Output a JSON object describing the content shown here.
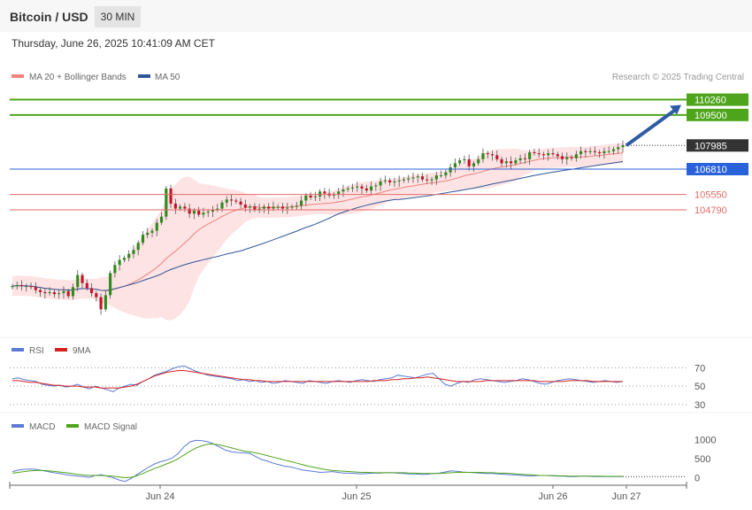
{
  "header": {
    "symbol": "Bitcoin / USD",
    "interval": "30 MIN",
    "datetime": "Thursday, June 26, 2025 10:41:09 AM CET",
    "source": "Research © 2025 Trading Central"
  },
  "colors": {
    "ma20": "#f0837f",
    "ma50": "#2f5597",
    "candle_up": "#2f8a1e",
    "candle_down": "#c7132a",
    "bollinger_fill": "#fde3e3",
    "resistance": "#4ea51b",
    "pivot": "#2962d9",
    "support": "#e26b6b",
    "price_tag": "#333333",
    "rsi": "#5b7bd5",
    "rsi_ma": "#d62020",
    "macd": "#5b7bd5",
    "macd_signal": "#4ea51b",
    "arrow": "#2f5ba5"
  },
  "chart_data": [
    {
      "type": "candlestick",
      "title": "Bitcoin / USD",
      "legend": [
        "MA 20 + Bollinger Bands",
        "MA 50"
      ],
      "x_ticks": [
        "Jun 24",
        "Jun 25",
        "Jun 26",
        "Jun 27"
      ],
      "ylim": [
        98500,
        110900
      ],
      "key_levels": [
        {
          "label": "110260",
          "value": 110260,
          "kind": "resistance"
        },
        {
          "label": "109500",
          "value": 109500,
          "kind": "resistance"
        },
        {
          "label": "107985",
          "value": 107985,
          "kind": "current"
        },
        {
          "label": "106810",
          "value": 106810,
          "kind": "pivot"
        },
        {
          "label": "105550",
          "value": 105550,
          "kind": "support"
        },
        {
          "label": "104790",
          "value": 104790,
          "kind": "support"
        }
      ],
      "closes": [
        101000,
        101050,
        101000,
        101000,
        100950,
        100800,
        100700,
        100650,
        100700,
        100600,
        100650,
        100750,
        100500,
        100950,
        101550,
        101150,
        100900,
        100650,
        100450,
        99850,
        100550,
        101650,
        102050,
        102300,
        102400,
        102600,
        102800,
        103150,
        103550,
        103650,
        103750,
        104150,
        104450,
        105850,
        105100,
        104850,
        104950,
        104850,
        104600,
        104750,
        104550,
        104650,
        104700,
        104800,
        104850,
        105150,
        105300,
        105250,
        105200,
        105050,
        104900,
        104950,
        104800,
        104850,
        104950,
        104850,
        104950,
        104950,
        104850,
        104900,
        104950,
        105000,
        105250,
        105500,
        105400,
        105450,
        105700,
        105600,
        105500,
        105550,
        105700,
        105800,
        105850,
        105900,
        105950,
        105850,
        105750,
        105950,
        106000,
        106200,
        106250,
        106150,
        106200,
        106250,
        106300,
        106350,
        106400,
        106450,
        106300,
        106250,
        106300,
        106500,
        106500,
        106650,
        106900,
        107100,
        107250,
        107300,
        106950,
        107100,
        107300,
        107600,
        107550,
        107500,
        107300,
        107100,
        107200,
        107100,
        107250,
        107350,
        107300,
        107650,
        107600,
        107550,
        107500,
        107600,
        107550,
        107450,
        107300,
        107400,
        107350,
        107550,
        107700,
        107650,
        107700,
        107650,
        107600,
        107700,
        107700,
        107800,
        107900,
        107985
      ],
      "bollinger": {
        "upper_start": 101900,
        "upper_end": 108300,
        "lower_start": 99200,
        "lower_end": 107100
      },
      "ma20": {
        "start": 100700,
        "end": 107700
      },
      "ma50": {
        "start": 100200,
        "end": 107500
      }
    },
    {
      "type": "line",
      "legend": [
        "RSI",
        "9MA"
      ],
      "y_ticks": [
        "70",
        "50",
        "30"
      ],
      "ylim": [
        25,
        80
      ],
      "rsi": [
        58,
        59,
        57,
        56,
        55,
        52,
        51,
        50,
        51,
        49,
        50,
        52,
        49,
        47,
        50,
        48,
        46,
        44,
        48,
        50,
        52,
        51,
        55,
        58,
        62,
        64,
        66,
        69,
        71,
        72,
        69,
        66,
        64,
        62,
        61,
        60,
        59,
        58,
        56,
        57,
        55,
        56,
        54,
        55,
        53,
        54,
        56,
        55,
        54,
        53,
        56,
        55,
        54,
        53,
        55,
        56,
        55,
        54,
        56,
        57,
        56,
        55,
        57,
        58,
        59,
        62,
        61,
        60,
        59,
        61,
        63,
        64,
        58,
        52,
        50,
        53,
        55,
        54,
        57,
        58,
        57,
        56,
        55,
        54,
        55,
        56,
        58,
        57,
        55,
        53,
        52,
        54,
        56,
        57,
        58,
        57,
        56,
        55,
        54,
        55,
        56,
        55,
        54,
        55
      ],
      "rsi_ma": [
        56,
        56,
        55,
        54,
        54,
        53,
        52,
        51,
        51,
        50,
        50,
        50,
        49,
        49,
        49,
        48,
        48,
        48,
        48,
        49,
        50,
        52,
        55,
        58,
        61,
        63,
        65,
        66,
        67,
        67,
        66,
        65,
        64,
        63,
        62,
        61,
        60,
        59,
        58,
        57,
        57,
        56,
        56,
        55,
        55,
        55,
        55,
        55,
        55,
        55,
        55,
        55,
        55,
        55,
        55,
        55,
        55,
        55,
        55,
        55,
        55,
        56,
        56,
        56,
        57,
        57,
        58,
        58,
        59,
        59,
        60,
        59,
        58,
        57,
        56,
        55,
        55,
        55,
        55,
        55,
        56,
        56,
        56,
        56,
        56,
        56,
        56,
        56,
        56,
        55,
        55,
        55,
        55,
        55,
        56,
        56,
        56,
        56,
        55,
        55,
        55,
        55,
        55,
        55
      ]
    },
    {
      "type": "line",
      "legend": [
        "MACD",
        "MACD Signal"
      ],
      "y_ticks": [
        "1000",
        "500",
        "0"
      ],
      "ylim": [
        -150,
        1150
      ],
      "macd": [
        160,
        200,
        220,
        230,
        220,
        190,
        160,
        130,
        110,
        80,
        60,
        40,
        30,
        10,
        60,
        80,
        40,
        0,
        -60,
        -100,
        -20,
        80,
        180,
        280,
        360,
        420,
        460,
        520,
        640,
        820,
        940,
        980,
        970,
        940,
        880,
        800,
        720,
        680,
        660,
        650,
        640,
        560,
        480,
        440,
        380,
        340,
        300,
        280,
        240,
        200,
        180,
        160,
        140,
        150,
        160,
        140,
        120,
        120,
        110,
        100,
        110,
        120,
        120,
        130,
        130,
        120,
        110,
        100,
        100,
        90,
        90,
        110,
        120,
        150,
        180,
        170,
        150,
        140,
        130,
        120,
        110,
        110,
        100,
        90,
        80,
        70,
        60,
        50,
        50,
        60,
        60,
        50,
        40,
        40,
        30,
        30,
        40,
        40,
        30,
        30,
        30,
        30,
        30,
        30
      ],
      "macd_signal": [
        120,
        140,
        160,
        180,
        190,
        190,
        180,
        170,
        150,
        130,
        110,
        90,
        70,
        60,
        60,
        60,
        50,
        40,
        20,
        0,
        10,
        50,
        110,
        180,
        240,
        300,
        360,
        420,
        500,
        600,
        700,
        780,
        840,
        880,
        880,
        860,
        820,
        780,
        740,
        700,
        680,
        650,
        620,
        580,
        540,
        500,
        460,
        420,
        380,
        340,
        300,
        270,
        240,
        210,
        190,
        180,
        170,
        160,
        150,
        140,
        140,
        130,
        130,
        130,
        130,
        130,
        130,
        120,
        120,
        110,
        110,
        110,
        110,
        120,
        130,
        140,
        140,
        140,
        140,
        140,
        130,
        130,
        120,
        120,
        110,
        100,
        90,
        80,
        70,
        60,
        60,
        60,
        50,
        50,
        40,
        40,
        40,
        40,
        40,
        40,
        35,
        35,
        35,
        35
      ]
    }
  ]
}
